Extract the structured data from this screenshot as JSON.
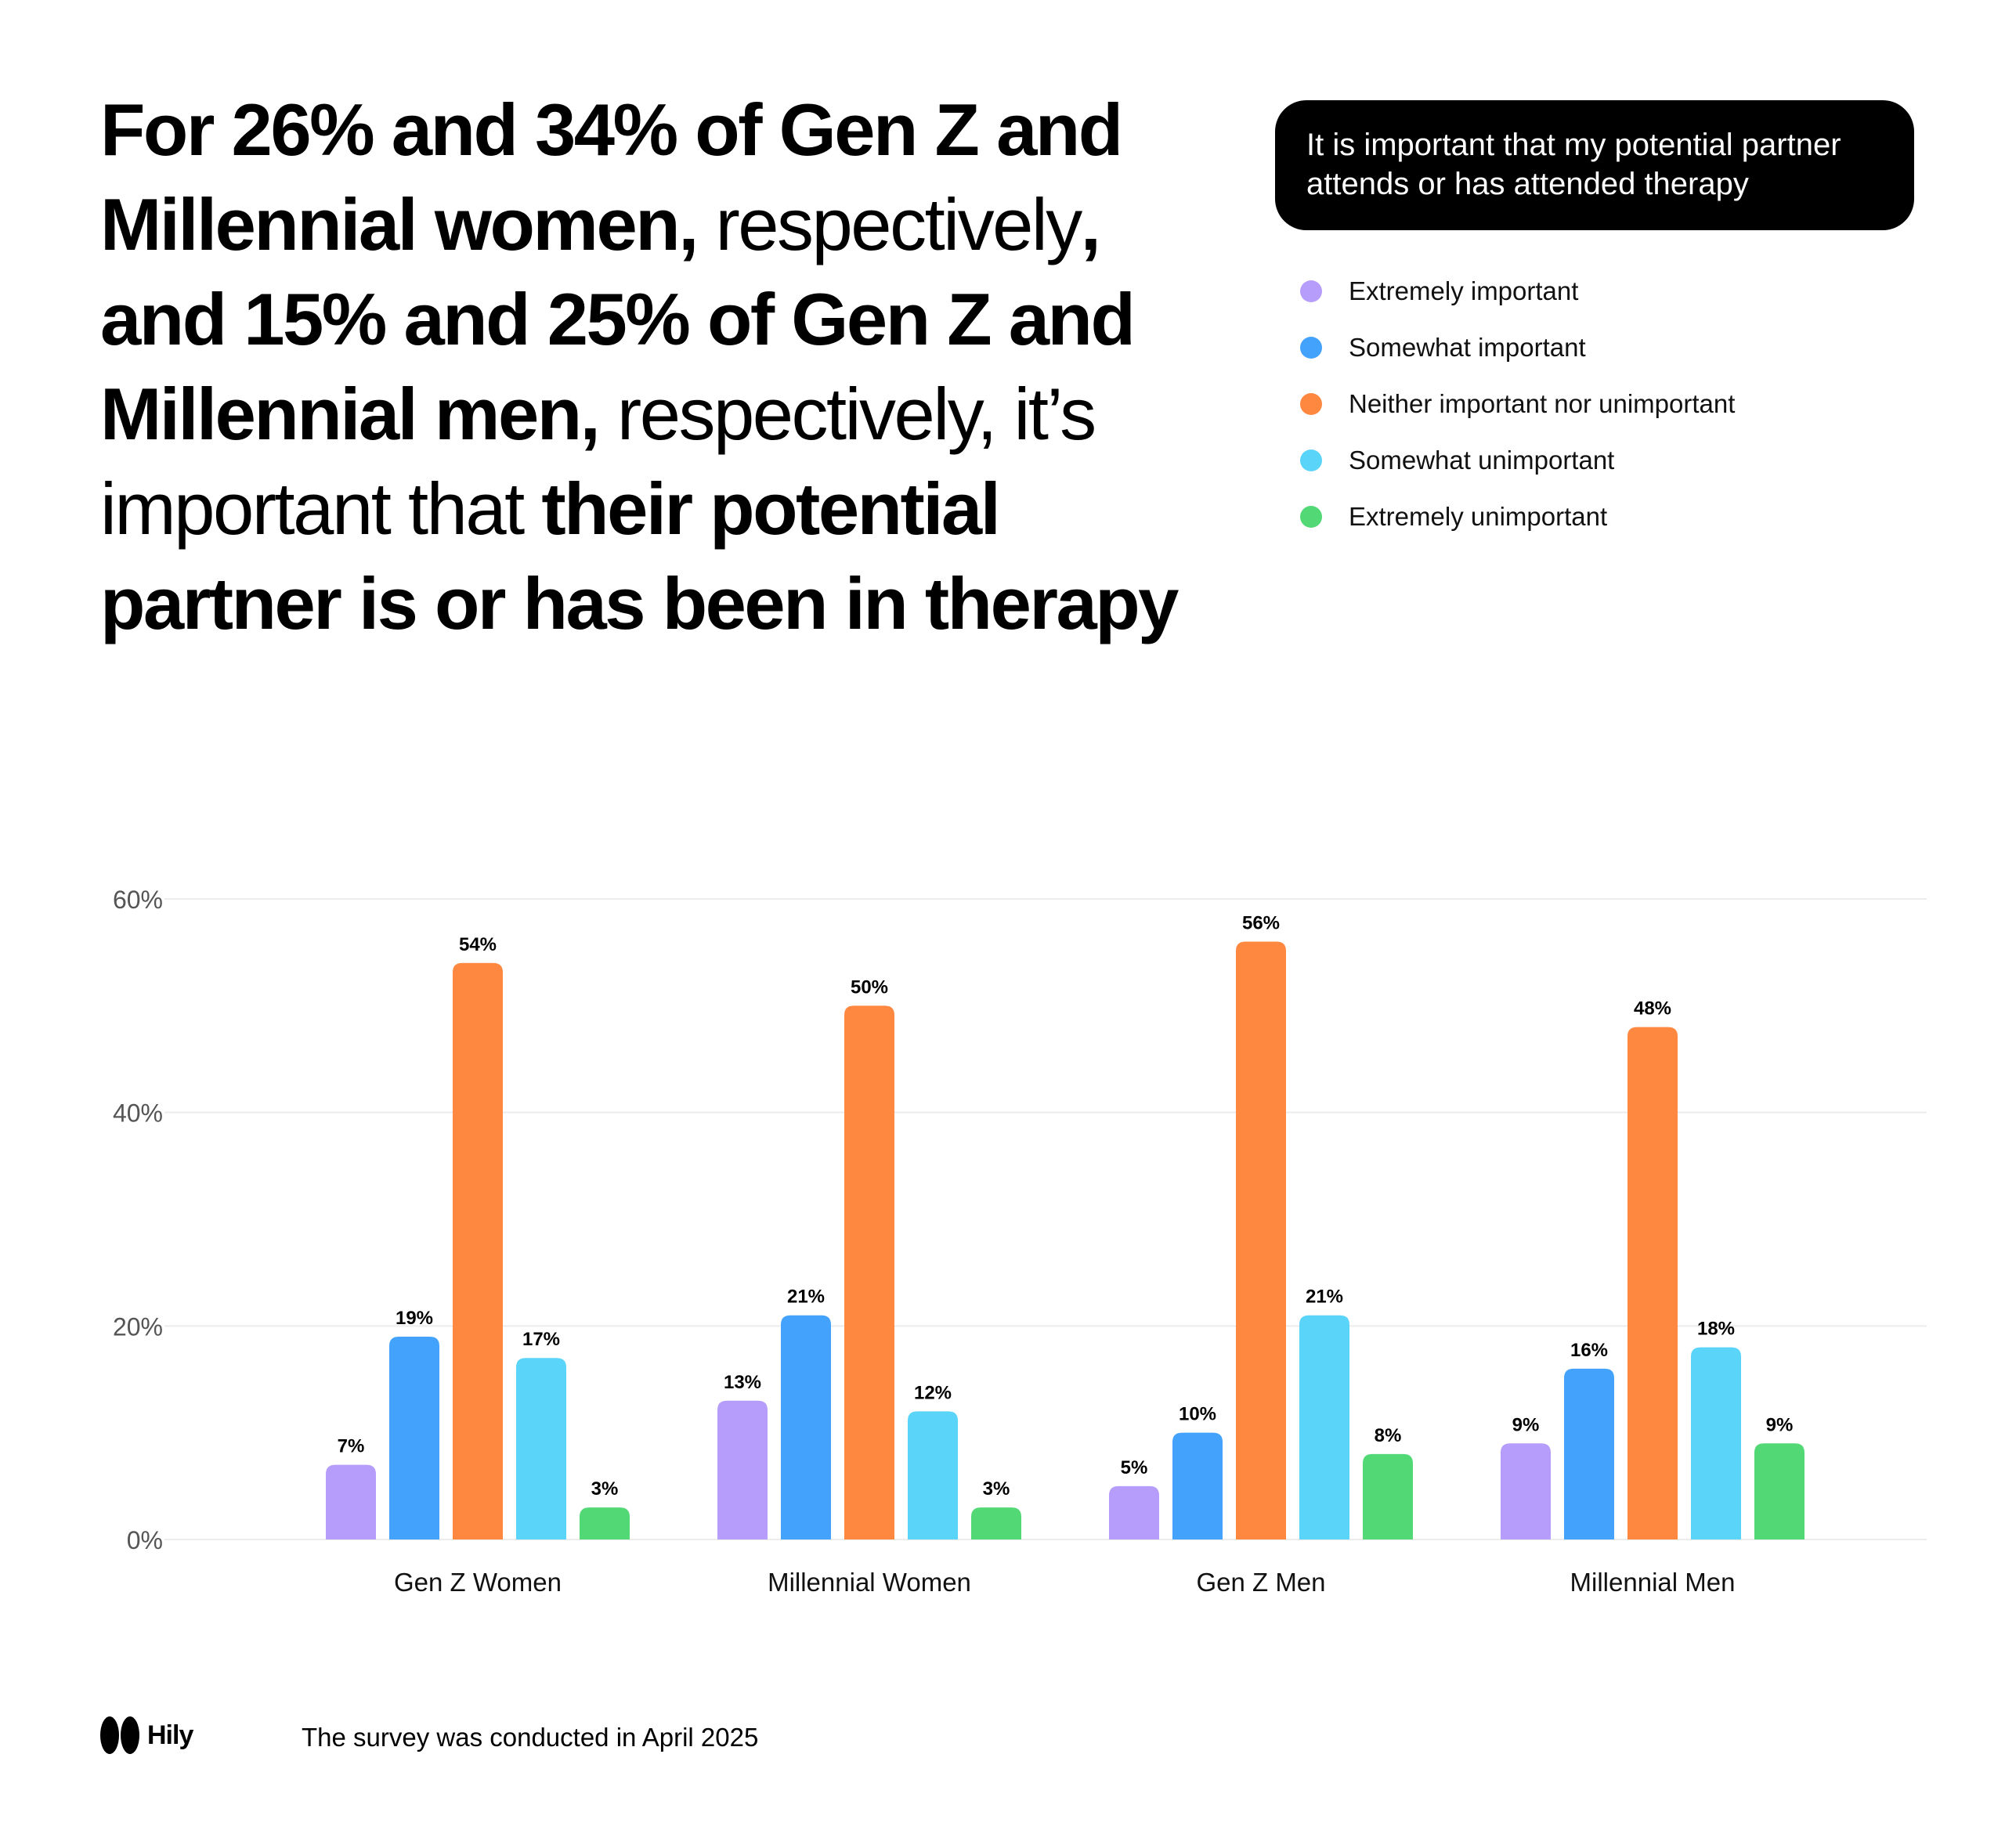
{
  "headline": [
    {
      "text": "For 26% and 34% of Gen Z  and Millennial women,",
      "weight": "bold"
    },
    {
      "text": " respectively",
      "weight": "normal"
    },
    {
      "text": ", and 15% and 25% of Gen Z and Millennial men,",
      "weight": "bold"
    },
    {
      "text": " respectively, it’s important that ",
      "weight": "normal"
    },
    {
      "text": "their potential partner is or has been in therapy",
      "weight": "bold"
    }
  ],
  "legend_title": "It is important that my potential partner attends or has attended therapy",
  "chart_data": {
    "type": "bar",
    "title": "",
    "xlabel": "",
    "ylabel": "",
    "ylim": [
      0,
      60
    ],
    "yticks": [
      0,
      20,
      40,
      60
    ],
    "ytick_labels": [
      "0%",
      "20%",
      "40%",
      "60%"
    ],
    "grid": true,
    "legend": "top-right",
    "categories": [
      "Gen Z Women",
      "Millennial Women",
      "Gen Z Men",
      "Millennial Men"
    ],
    "series": [
      {
        "name": "Extremely important",
        "color": "#b69cfb",
        "values": [
          7,
          13,
          5,
          9
        ]
      },
      {
        "name": "Somewhat important",
        "color": "#43a2fc",
        "values": [
          19,
          21,
          10,
          16
        ]
      },
      {
        "name": "Neither important nor unimportant",
        "color": "#ff8840",
        "values": [
          54,
          50,
          56,
          48
        ]
      },
      {
        "name": "Somewhat unimportant",
        "color": "#5bd4fa",
        "values": [
          17,
          12,
          21,
          18
        ]
      },
      {
        "name": "Extremely unimportant",
        "color": "#52d976",
        "values": [
          3,
          3,
          8,
          9
        ]
      }
    ]
  },
  "footer": {
    "brand": "Hily",
    "note": "The survey was conducted in April 2025"
  }
}
